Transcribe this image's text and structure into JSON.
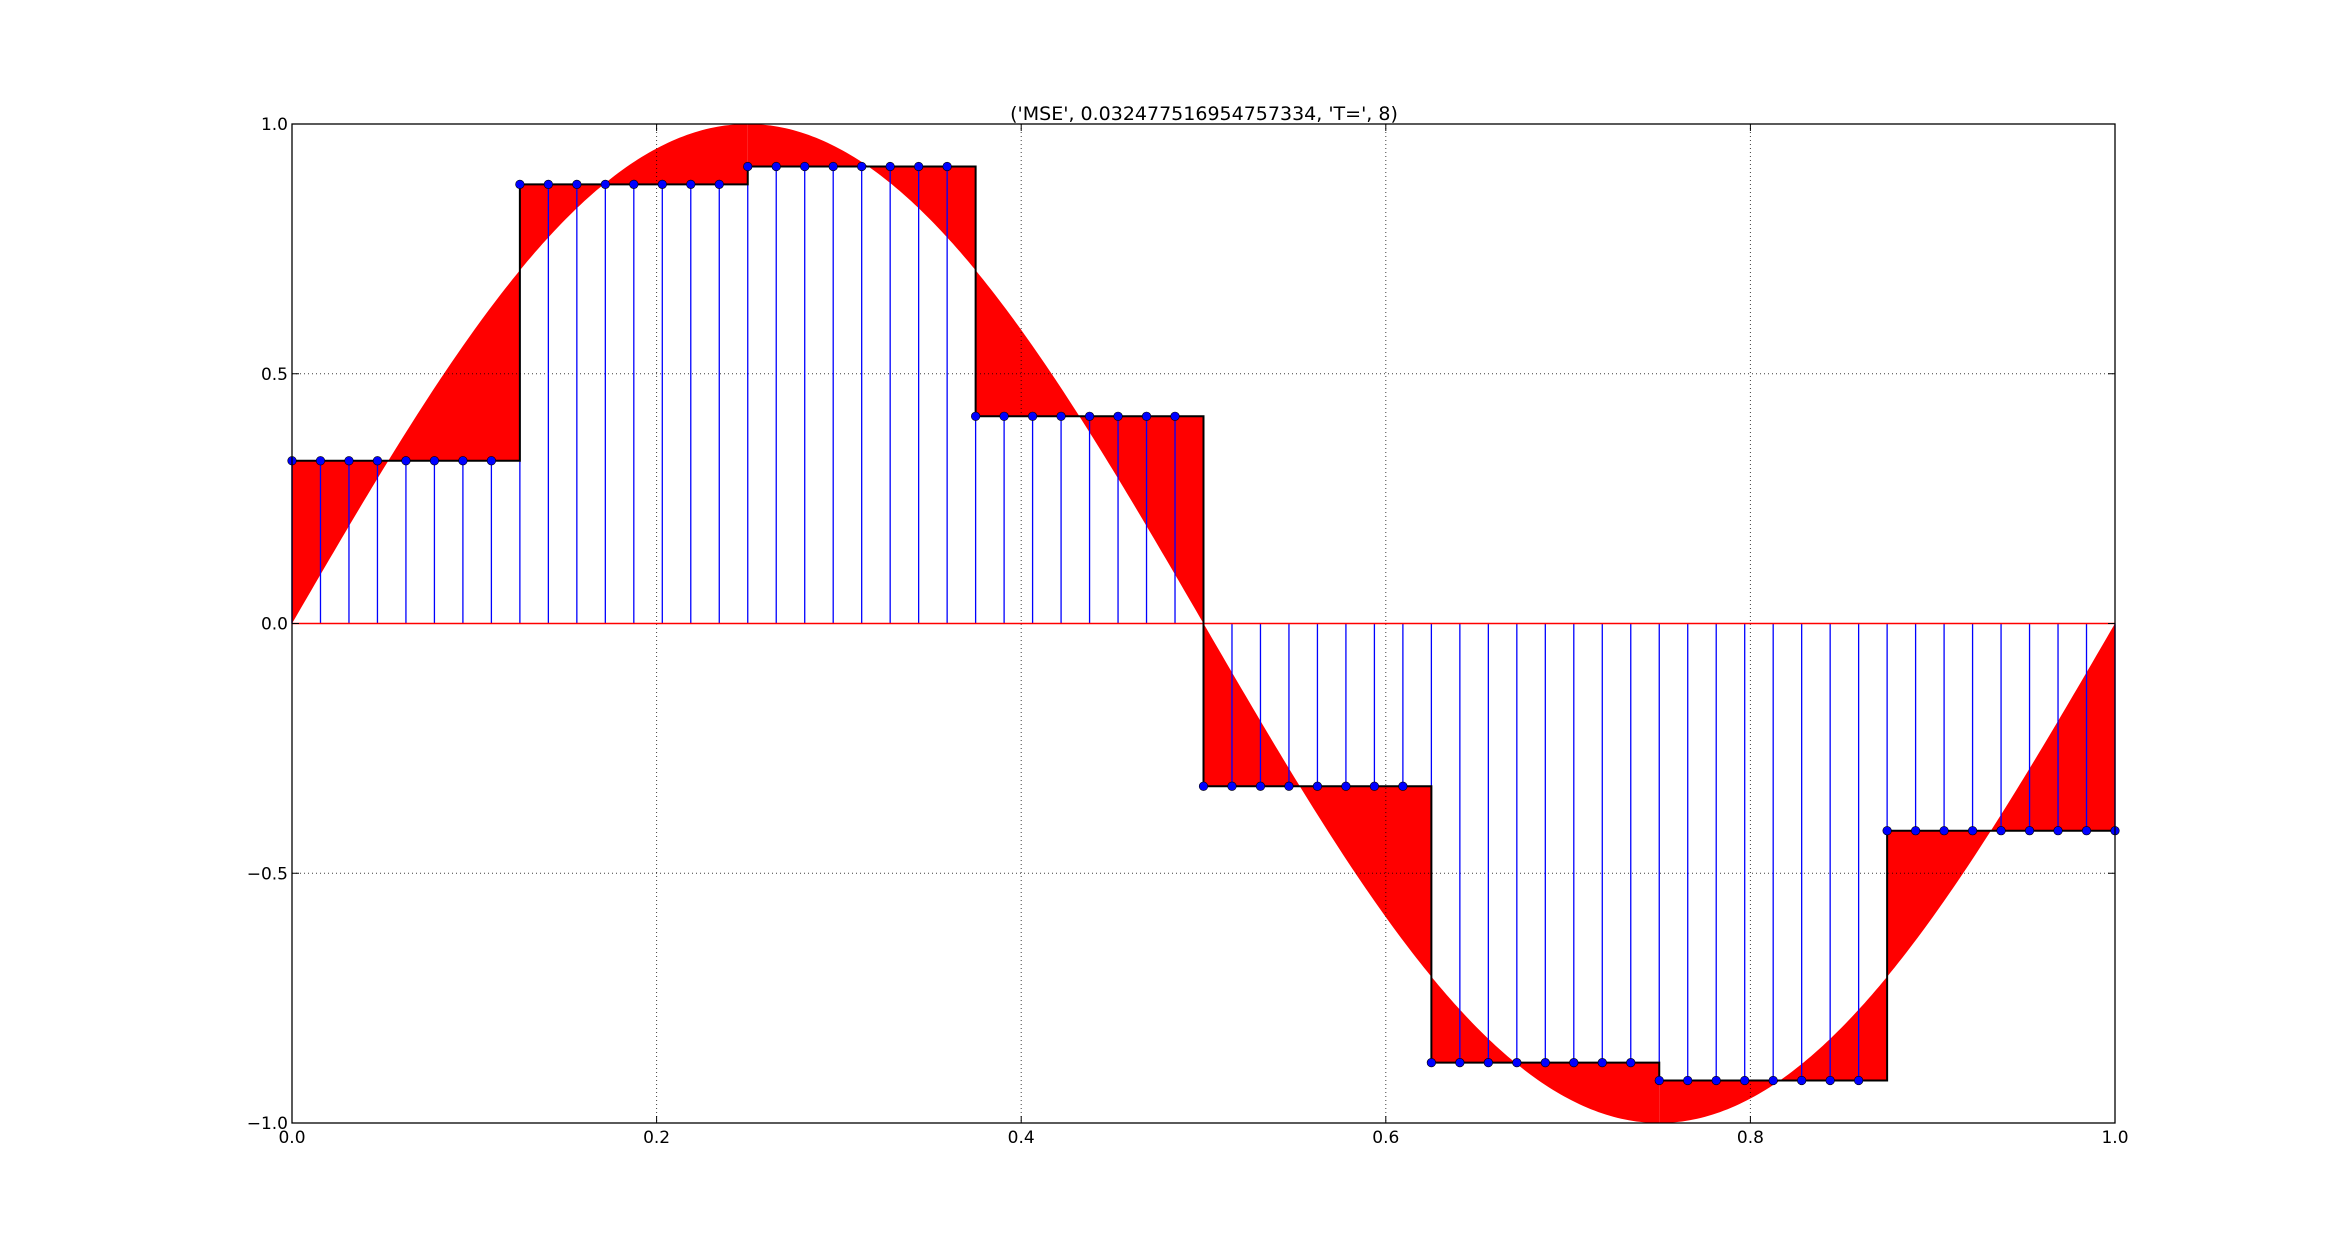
{
  "chart_data": {
    "type": "line",
    "title": "('MSE', 0.032477516954757334, 'T=', 8)",
    "xlabel": "",
    "ylabel": "",
    "xlim": [
      0,
      1
    ],
    "ylim": [
      -1,
      1
    ],
    "grid": true,
    "x_ticks": [
      0.0,
      0.2,
      0.4,
      0.6,
      0.8,
      1.0
    ],
    "x_tick_labels": [
      "0.0",
      "0.2",
      "0.4",
      "0.6",
      "0.8",
      "1.0"
    ],
    "y_ticks": [
      1.0,
      0.5,
      0.0,
      -0.5,
      -1.0
    ],
    "y_tick_labels": [
      "1.0",
      "0.5",
      "0.0",
      "−0.5",
      "−1.0"
    ],
    "sample_count": 65,
    "segments": 8,
    "segment_levels": [
      0.3258,
      0.8792,
      0.9149,
      0.4148,
      -0.3258,
      -0.8792,
      -0.9149,
      -0.4148
    ],
    "series": [
      {
        "kind": "continuous",
        "function": "sin(2*pi*x)",
        "color": "#ff0000"
      },
      {
        "kind": "step-stems",
        "color": "#0000ff"
      }
    ]
  }
}
